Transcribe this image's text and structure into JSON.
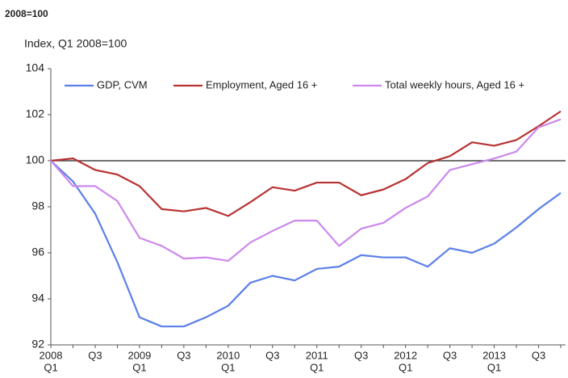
{
  "chart_data": {
    "type": "line",
    "title": "2008=100",
    "subtitle": "Index, Q1 2008=100",
    "categories": [
      "2008",
      null,
      "Q3",
      null,
      "2009",
      null,
      "Q3",
      null,
      "2010",
      null,
      "Q3",
      null,
      "2011",
      null,
      "Q3",
      null,
      "2012",
      null,
      "Q3",
      null,
      "2013",
      null,
      "Q3",
      null
    ],
    "category_sublabels": [
      "Q1",
      null,
      null,
      null,
      "Q1",
      null,
      null,
      null,
      "Q1",
      null,
      null,
      null,
      "Q1",
      null,
      null,
      null,
      "Q1",
      null,
      null,
      null,
      "Q1",
      null,
      null,
      null
    ],
    "series": [
      {
        "name": "GDP, CVM",
        "color": "#5b7fe8",
        "values": [
          100,
          99.1,
          97.7,
          95.6,
          93.2,
          92.8,
          92.8,
          93.2,
          93.7,
          94.7,
          95.0,
          94.8,
          95.3,
          95.4,
          95.9,
          95.8,
          95.8,
          95.4,
          96.2,
          96.0,
          96.4,
          97.1,
          97.9,
          98.6
        ]
      },
      {
        "name": "Employment, Aged 16 +",
        "color": "#b83232",
        "values": [
          100,
          100.1,
          99.6,
          99.4,
          98.9,
          97.9,
          97.8,
          97.95,
          97.6,
          98.2,
          98.85,
          98.7,
          99.05,
          99.05,
          98.5,
          98.75,
          99.2,
          99.9,
          100.2,
          100.8,
          100.65,
          100.9,
          101.5,
          102.15
        ]
      },
      {
        "name": "Total weekly hours, Aged 16 +",
        "color": "#cc88ee",
        "values": [
          100,
          98.9,
          98.9,
          98.25,
          96.65,
          96.3,
          95.75,
          95.8,
          95.65,
          96.45,
          96.95,
          97.4,
          97.4,
          96.3,
          97.05,
          97.3,
          97.95,
          98.45,
          99.6,
          99.85,
          100.1,
          100.4,
          101.45,
          101.8
        ]
      }
    ],
    "ylim": [
      92,
      104
    ],
    "yticks": [
      92,
      94,
      96,
      98,
      100,
      102,
      104
    ],
    "reference_line": 100,
    "grid": false,
    "legend": "top"
  }
}
